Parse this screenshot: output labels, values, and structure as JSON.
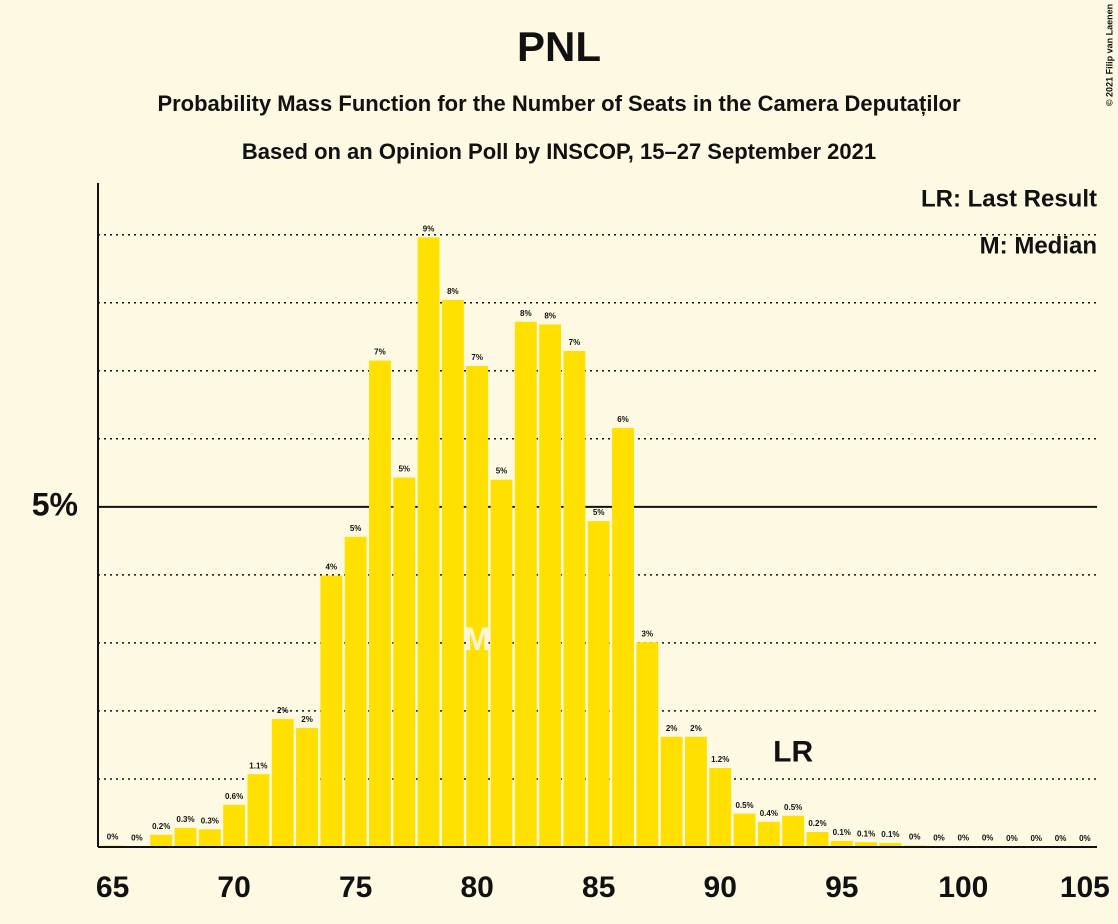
{
  "chart_data": {
    "type": "bar",
    "title": "PNL",
    "subtitle": "Probability Mass Function for the Number of Seats in the Camera Deputaților",
    "subtitle2": "Based on an Opinion Poll by INSCOP, 15–27 September 2021",
    "copyright": "© 2021 Filip van Laenen",
    "legend": [
      "LR: Last Result",
      "M: Median"
    ],
    "color": "#ffe000",
    "x": [
      65,
      66,
      67,
      68,
      69,
      70,
      71,
      72,
      73,
      74,
      75,
      76,
      77,
      78,
      79,
      80,
      81,
      82,
      83,
      84,
      85,
      86,
      87,
      88,
      89,
      90,
      91,
      92,
      93,
      94,
      95,
      96,
      97,
      98,
      99,
      100,
      101,
      102,
      103,
      104,
      105
    ],
    "values": [
      0.02,
      0.01,
      0.18,
      0.28,
      0.26,
      0.62,
      1.07,
      1.88,
      1.75,
      3.99,
      4.56,
      7.15,
      5.43,
      8.96,
      8.04,
      7.07,
      5.4,
      7.72,
      7.68,
      7.29,
      4.79,
      6.16,
      3.01,
      1.62,
      1.62,
      1.16,
      0.49,
      0.37,
      0.46,
      0.22,
      0.09,
      0.07,
      0.06,
      0.02,
      0.01,
      0.01,
      0.01,
      0,
      0,
      0,
      0
    ],
    "value_labels": [
      "0%",
      "0%",
      "0.2%",
      "0.3%",
      "0.3%",
      "0.6%",
      "1.1%",
      "2%",
      "2%",
      "4%",
      "5%",
      "7%",
      "5%",
      "9%",
      "8%",
      "7%",
      "5%",
      "8%",
      "8%",
      "7%",
      "5%",
      "6%",
      "3%",
      "2%",
      "2%",
      "1.2%",
      "0.5%",
      "0.4%",
      "0.5%",
      "0.2%",
      "0.1%",
      "0.1%",
      "0.1%",
      "0%",
      "0%",
      "0%",
      "0%",
      "0%",
      "0%",
      "0%",
      "0%"
    ],
    "xlim": [
      64.4,
      105.5
    ],
    "xticks": [
      65,
      70,
      75,
      80,
      85,
      90,
      95,
      100,
      105
    ],
    "ylim": [
      0,
      9.76
    ],
    "yticks": [
      {
        "value": 5,
        "label": "5%"
      }
    ],
    "minor_gridlines": [
      1,
      2,
      3,
      4,
      6,
      7,
      8,
      9
    ],
    "annotations": [
      {
        "x": 80,
        "label": "M"
      },
      {
        "x": 93,
        "label": "LR"
      }
    ]
  }
}
